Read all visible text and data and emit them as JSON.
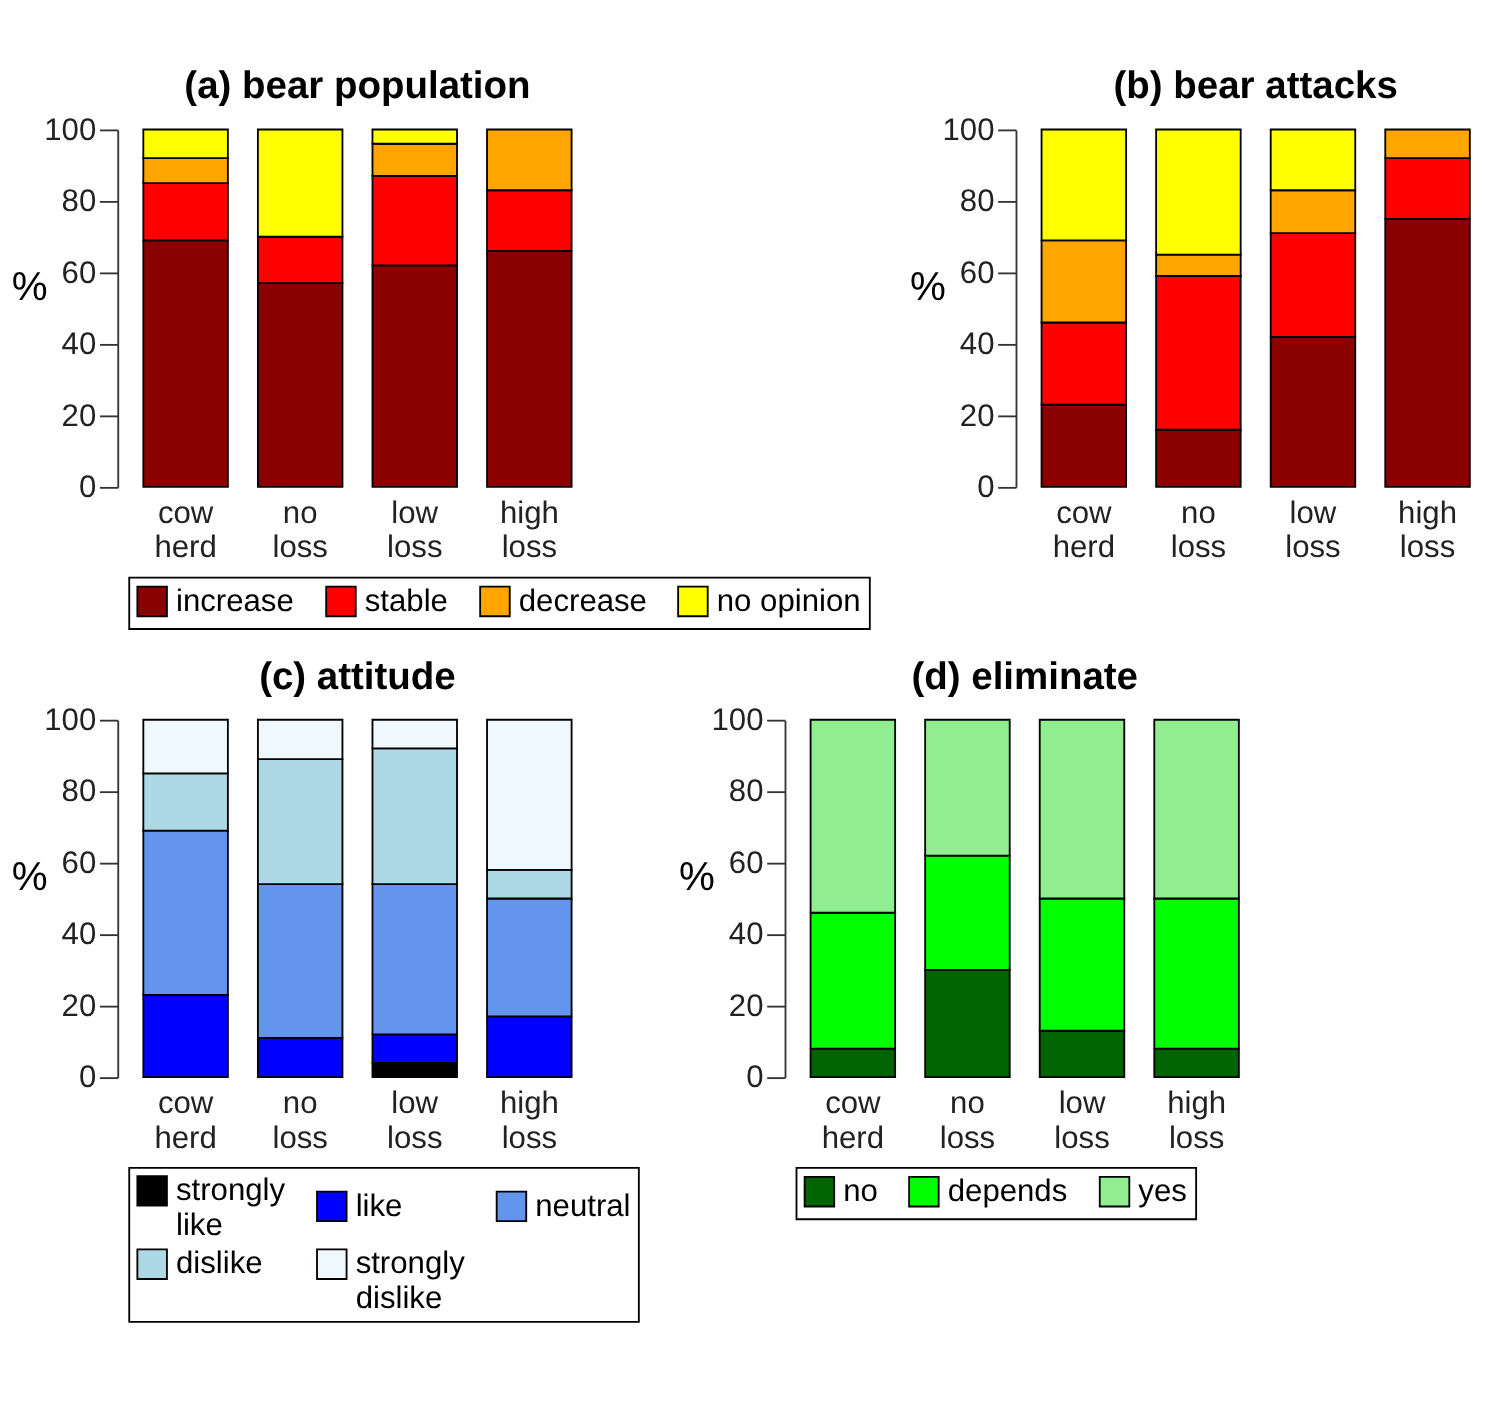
{
  "chart_data": [
    {
      "type": "bar",
      "title": "(a) bear population",
      "ylabel": "%",
      "stacked": true,
      "categories": [
        "cow herd",
        "no loss",
        "low loss",
        "high loss"
      ],
      "ylim": [
        0,
        100
      ],
      "yticks": [
        0,
        20,
        40,
        60,
        80,
        100
      ],
      "grid": false,
      "legend": "bottom",
      "series": [
        {
          "name": "increase",
          "color": "#8b0000",
          "values": [
            69,
            57,
            62,
            66
          ]
        },
        {
          "name": "stable",
          "color": "#ff0000",
          "values": [
            16,
            13,
            25,
            17
          ]
        },
        {
          "name": "decrease",
          "color": "#ffa500",
          "values": [
            7,
            0,
            9,
            17
          ]
        },
        {
          "name": "no opinion",
          "color": "#ffff00",
          "values": [
            8,
            30,
            4,
            0
          ]
        }
      ]
    },
    {
      "type": "bar",
      "title": "(b) bear attacks",
      "ylabel": "%",
      "stacked": true,
      "categories": [
        "cow herd",
        "no loss",
        "low loss",
        "high loss"
      ],
      "ylim": [
        0,
        100
      ],
      "yticks": [
        0,
        20,
        40,
        60,
        80,
        100
      ],
      "grid": false,
      "legend": false,
      "series": [
        {
          "color": "#8b0000",
          "values": [
            23,
            16,
            42,
            75
          ]
        },
        {
          "color": "#ff0000",
          "values": [
            23,
            43,
            29,
            17
          ]
        },
        {
          "color": "#ffa500",
          "values": [
            23,
            6,
            12,
            8
          ]
        },
        {
          "color": "#ffff00",
          "values": [
            31,
            35,
            17,
            0
          ]
        }
      ]
    },
    {
      "type": "bar",
      "title": "(c) attitude",
      "ylabel": "%",
      "stacked": true,
      "categories": [
        "cow herd",
        "no loss",
        "low loss",
        "high loss"
      ],
      "ylim": [
        0,
        100
      ],
      "yticks": [
        0,
        20,
        40,
        60,
        80,
        100
      ],
      "grid": false,
      "legend": "bottom",
      "series": [
        {
          "name": "strongly like",
          "color": "#000000",
          "values": [
            0,
            0,
            4,
            0
          ]
        },
        {
          "name": "like",
          "color": "#0000ff",
          "values": [
            23,
            11,
            8,
            17
          ]
        },
        {
          "name": "neutral",
          "color": "#6495ed",
          "values": [
            46,
            43,
            42,
            33
          ]
        },
        {
          "name": "dislike",
          "color": "#add8e6",
          "values": [
            16,
            35,
            38,
            8
          ]
        },
        {
          "name": "strongly dislike",
          "color": "#f0f8ff",
          "values": [
            15,
            11,
            8,
            42
          ]
        }
      ]
    },
    {
      "type": "bar",
      "title": "(d) eliminate",
      "ylabel": "%",
      "stacked": true,
      "categories": [
        "cow herd",
        "no loss",
        "low loss",
        "high loss"
      ],
      "ylim": [
        0,
        100
      ],
      "yticks": [
        0,
        20,
        40,
        60,
        80,
        100
      ],
      "grid": false,
      "legend": "bottom",
      "series": [
        {
          "name": "no",
          "color": "#006400",
          "values": [
            8,
            30,
            13,
            8
          ]
        },
        {
          "name": "depends",
          "color": "#00ff00",
          "values": [
            38,
            32,
            37,
            42
          ]
        },
        {
          "name": "yes",
          "color": "#90ee90",
          "values": [
            54,
            38,
            50,
            50
          ]
        }
      ]
    }
  ]
}
